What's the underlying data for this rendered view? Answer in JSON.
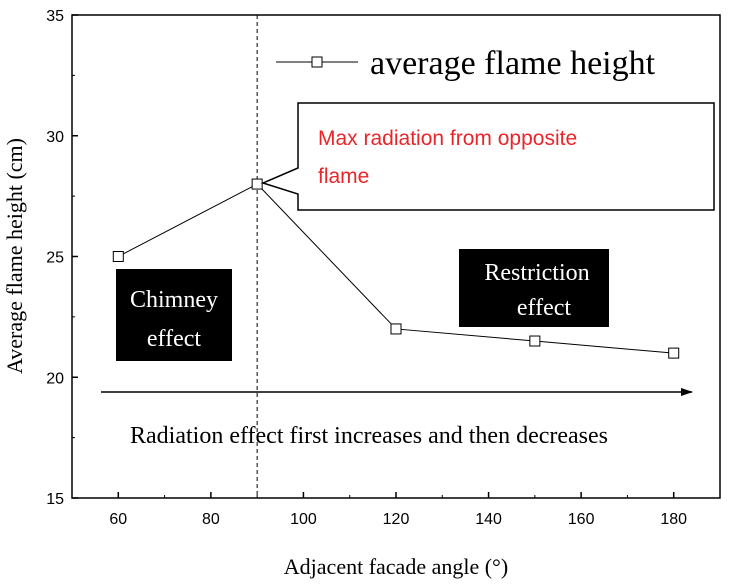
{
  "chart_data": {
    "type": "line",
    "xlabel": "Adjacent facade angle (°)",
    "ylabel": "Average flame height (cm)",
    "xlim": [
      50,
      190
    ],
    "ylim": [
      15,
      35
    ],
    "x_ticks": [
      "60",
      "80",
      "100",
      "120",
      "140",
      "160",
      "180"
    ],
    "y_ticks": [
      "15",
      "20",
      "25",
      "30",
      "35"
    ],
    "series": [
      {
        "name": "average flame height",
        "marker": "open-square",
        "color": "#000000",
        "x": [
          60,
          90,
          120,
          150,
          180
        ],
        "y": [
          25,
          28,
          22,
          21.5,
          21
        ]
      }
    ],
    "legend_position": "top-right",
    "grid": false,
    "annotations": {
      "vertical_line_x": 90,
      "callout": "Max radiation from opposite flame",
      "chimney_line1": "Chimney",
      "chimney_line2": "effect",
      "restriction_line1": "Restriction",
      "restriction_line2": "effect",
      "arrow_label": "Radiation effect first increases and then  decreases"
    },
    "colors": {
      "callout_text": "#e8262a",
      "box_fill": "#000000",
      "box_text": "#ffffff"
    }
  }
}
